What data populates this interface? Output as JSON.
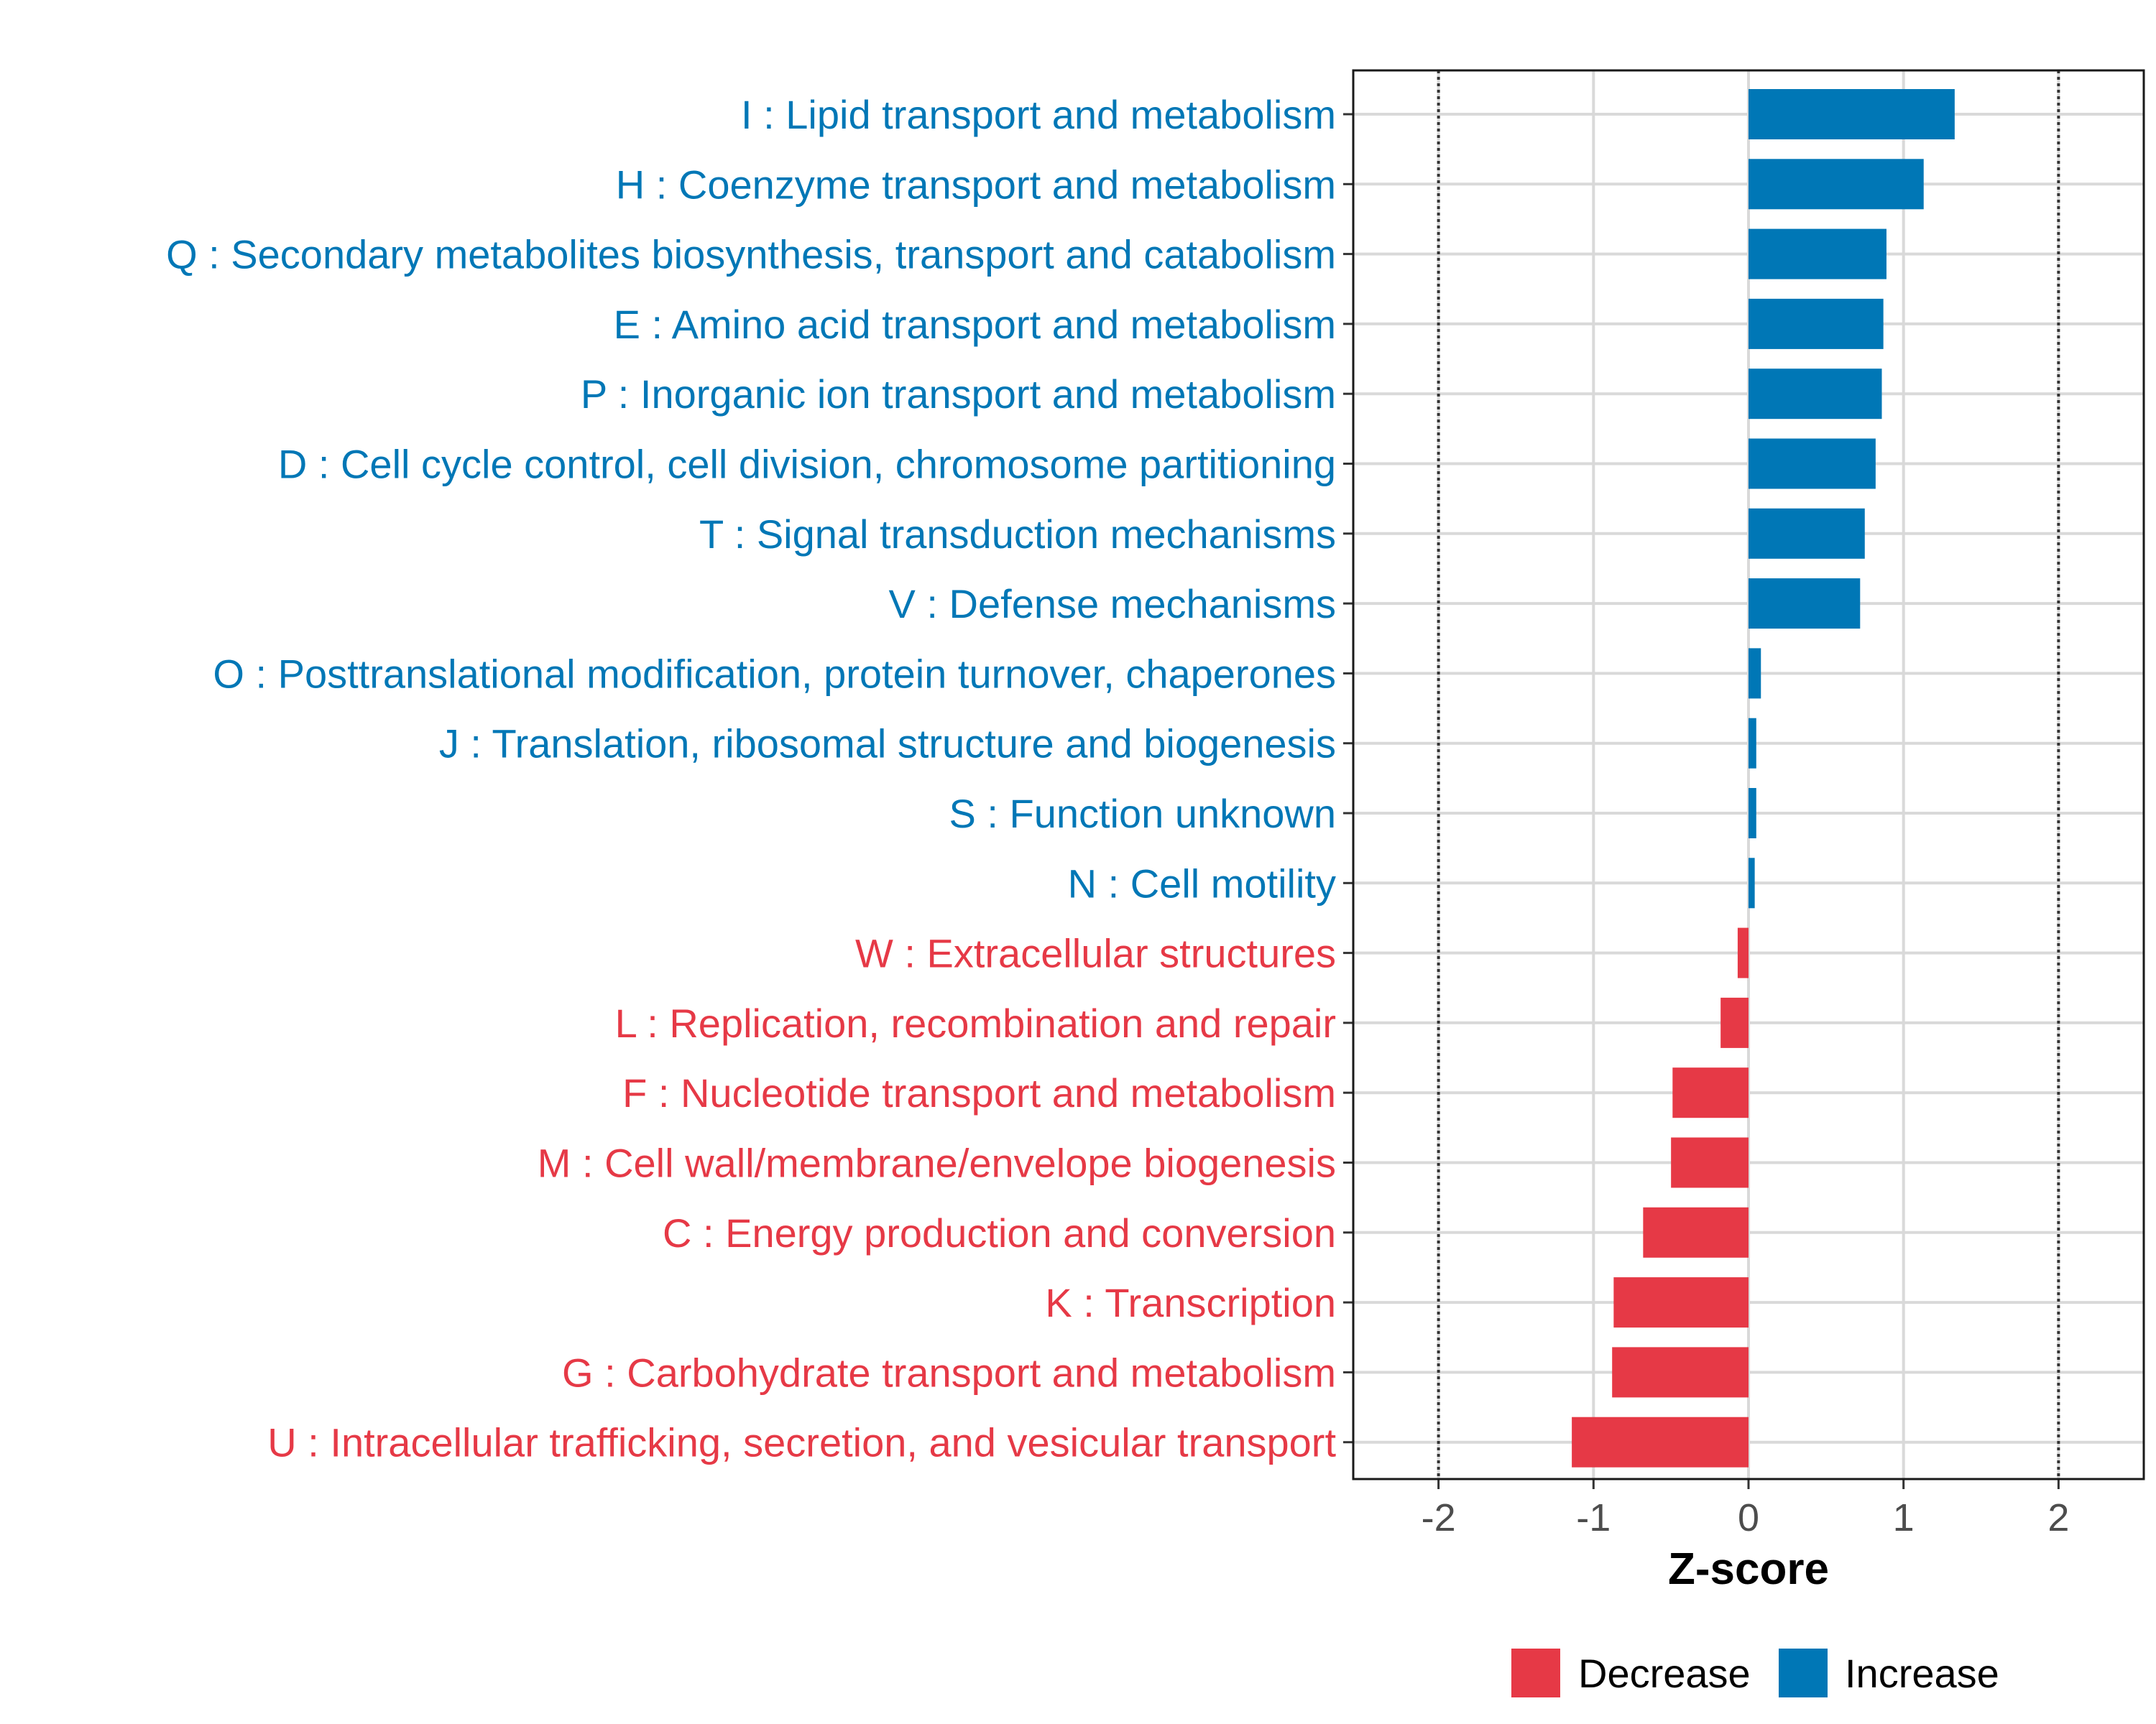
{
  "chart_data": {
    "type": "bar",
    "orientation": "horizontal",
    "xlabel": "Z-score",
    "xlim": [
      -2.55,
      2.55
    ],
    "xticks": [
      -2,
      -1,
      0,
      1,
      2
    ],
    "xtick_labels": [
      "-2",
      "-1",
      "0",
      "1",
      "2"
    ],
    "reference_lines": [
      -2,
      2
    ],
    "grid": true,
    "legend_placement": "bottom",
    "colors": {
      "Decrease": "#e63946",
      "Increase": "#0077b6"
    },
    "legend": [
      {
        "label": "Decrease",
        "color": "#e63946"
      },
      {
        "label": "Increase",
        "color": "#0077b6"
      }
    ],
    "categories": [
      "I : Lipid transport and metabolism",
      "H : Coenzyme transport and metabolism",
      "Q : Secondary metabolites biosynthesis, transport and catabolism",
      "E : Amino acid transport and metabolism",
      "P : Inorganic ion transport and metabolism",
      "D : Cell cycle control, cell division, chromosome partitioning",
      "T : Signal transduction mechanisms",
      "V : Defense mechanisms",
      "O : Posttranslational modification, protein turnover, chaperones",
      "J : Translation, ribosomal structure and biogenesis",
      "S : Function unknown",
      "N : Cell motility",
      "W : Extracellular structures",
      "L : Replication, recombination and repair",
      "F : Nucleotide transport and metabolism",
      "M : Cell wall/membrane/envelope biogenesis",
      "C : Energy production and conversion",
      "K : Transcription",
      "G : Carbohydrate transport and metabolism",
      "U : Intracellular trafficking, secretion, and vesicular transport"
    ],
    "values": [
      1.33,
      1.13,
      0.89,
      0.87,
      0.86,
      0.82,
      0.75,
      0.72,
      0.08,
      0.05,
      0.05,
      0.04,
      -0.07,
      -0.18,
      -0.49,
      -0.5,
      -0.68,
      -0.87,
      -0.88,
      -1.14
    ],
    "groups": [
      "Increase",
      "Increase",
      "Increase",
      "Increase",
      "Increase",
      "Increase",
      "Increase",
      "Increase",
      "Increase",
      "Increase",
      "Increase",
      "Increase",
      "Decrease",
      "Decrease",
      "Decrease",
      "Decrease",
      "Decrease",
      "Decrease",
      "Decrease",
      "Decrease"
    ]
  }
}
